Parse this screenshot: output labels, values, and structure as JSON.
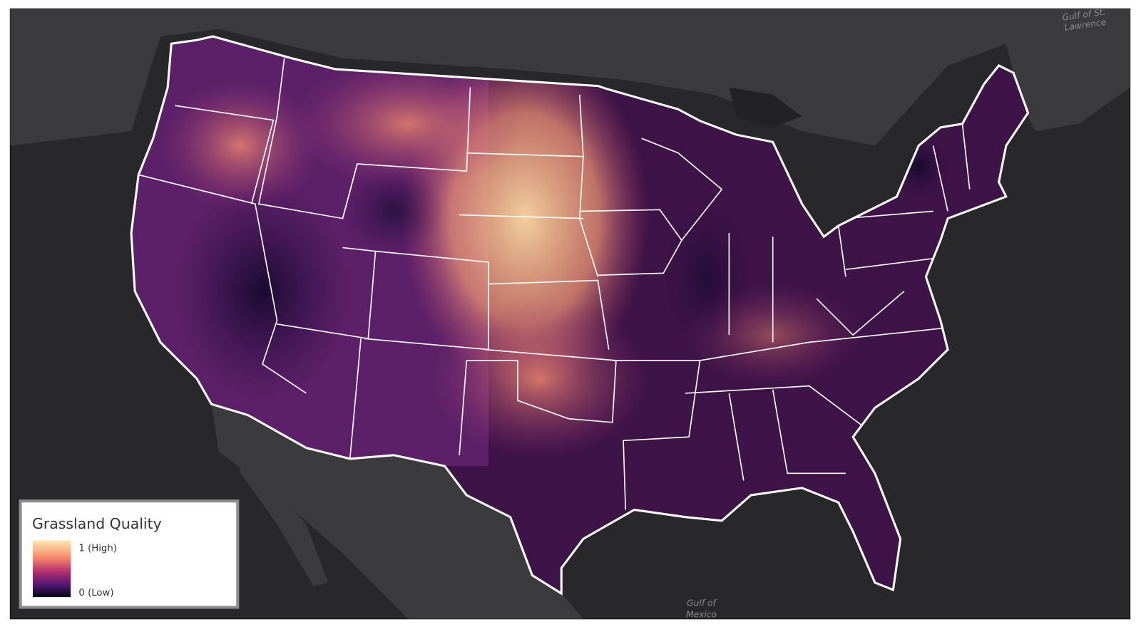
{
  "map": {
    "legend": {
      "title": "Grassland Quality",
      "max_label": "1 (High)",
      "min_label": "0 (Low)"
    },
    "water_labels": {
      "gulf_st_lawrence": [
        "Gulf of St.",
        "Lawrence"
      ],
      "gulf_mexico": [
        "Gulf of",
        "Mexico"
      ]
    }
  }
}
